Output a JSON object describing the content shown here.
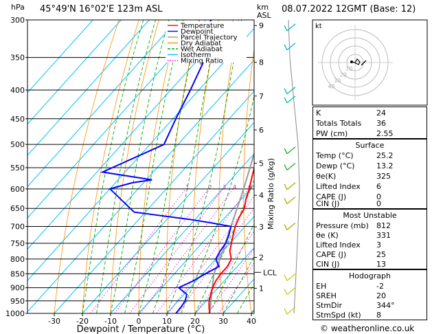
{
  "header": {
    "hpa_label": "hPa",
    "location": "45°49'N  16°02'E  123m  ASL",
    "km_label": "km",
    "asl_label": "ASL",
    "datetime": "08.07.2022  12GMT  (Base: 12)"
  },
  "legend": [
    {
      "label": "Temperature",
      "color": "#ff0000"
    },
    {
      "label": "Dewpoint",
      "color": "#0000ff"
    },
    {
      "label": "Parcel Trajectory",
      "color": "#999999"
    },
    {
      "label": "Dry Adiabat",
      "color": "#ff8c00"
    },
    {
      "label": "Wet Adiabat",
      "color": "#00aa00"
    },
    {
      "label": "Isotherm",
      "color": "#00bfff"
    },
    {
      "label": "Mixing Ratio",
      "color": "#ff00ff"
    }
  ],
  "chart_data": {
    "type": "skew-t",
    "xlabel": "Dewpoint / Temperature (°C)",
    "x_ticks": [
      -30,
      -20,
      -10,
      0,
      10,
      20,
      30,
      40
    ],
    "pressure_levels": [
      300,
      350,
      400,
      450,
      500,
      550,
      600,
      650,
      700,
      750,
      800,
      850,
      900,
      950,
      1000
    ],
    "altitude_km_ticks": [
      "1",
      "2",
      "3",
      "4",
      "5",
      "6",
      "7",
      "8",
      "9"
    ],
    "altitude_km_pressures": [
      902,
      795,
      701,
      616,
      540,
      471,
      410,
      357,
      307
    ],
    "lcl_label": "LCL",
    "lcl_pressure": 845,
    "mixing_ratio_axis_label": "Mixing Ratio (g/kg)",
    "mixing_ratio_labels": [
      "1",
      "2",
      "3",
      "4",
      "6",
      "8",
      "10",
      "15",
      "20",
      "25"
    ],
    "mixing_ratio_values": [
      1,
      2,
      3,
      4,
      6,
      8,
      10,
      15,
      20,
      25
    ],
    "temperature": [
      [
        1000,
        25.2
      ],
      [
        975,
        23
      ],
      [
        950,
        21
      ],
      [
        925,
        19.5
      ],
      [
        900,
        18
      ],
      [
        875,
        17
      ],
      [
        850,
        16.5
      ],
      [
        825,
        16.5
      ],
      [
        800,
        15.5
      ],
      [
        775,
        12.5
      ],
      [
        750,
        10.5
      ],
      [
        725,
        8.5
      ],
      [
        700,
        6.5
      ],
      [
        675,
        5
      ],
      [
        650,
        4
      ],
      [
        625,
        1.5
      ],
      [
        600,
        -0.5
      ],
      [
        575,
        -3
      ],
      [
        550,
        -5.5
      ],
      [
        500,
        -10.5
      ],
      [
        450,
        -16.5
      ],
      [
        400,
        -24
      ],
      [
        350,
        -32
      ],
      [
        300,
        -40.5
      ]
    ],
    "dewpoint": [
      [
        1000,
        13.2
      ],
      [
        975,
        13
      ],
      [
        950,
        12.5
      ],
      [
        925,
        11
      ],
      [
        900,
        6
      ],
      [
        875,
        9
      ],
      [
        850,
        11
      ],
      [
        825,
        13.5
      ],
      [
        800,
        10
      ],
      [
        775,
        9
      ],
      [
        750,
        8.5
      ],
      [
        725,
        7
      ],
      [
        700,
        5
      ],
      [
        690,
        -3
      ],
      [
        680,
        -12
      ],
      [
        660,
        -34
      ],
      [
        600,
        -50
      ],
      [
        585,
        -44
      ],
      [
        578,
        -38
      ],
      [
        560,
        -58
      ],
      [
        500,
        -45
      ],
      [
        450,
        -49
      ],
      [
        400,
        -53
      ],
      [
        350,
        -58
      ],
      [
        320,
        -67
      ],
      [
        300,
        -68
      ]
    ],
    "parcel": [
      [
        1000,
        25.2
      ],
      [
        850,
        14
      ],
      [
        800,
        11.5
      ],
      [
        700,
        5
      ],
      [
        600,
        -2.5
      ],
      [
        500,
        -12
      ],
      [
        400,
        -24.5
      ],
      [
        300,
        -41
      ]
    ]
  },
  "hodograph": {
    "kt_label": "kt",
    "ring_labels": [
      "10",
      "20",
      "30",
      "40"
    ]
  },
  "indices": {
    "rows": [
      {
        "label": "K",
        "value": "24"
      },
      {
        "label": "Totals Totals",
        "value": "36"
      },
      {
        "label": "PW (cm)",
        "value": "2.55"
      }
    ],
    "surface": {
      "title": "Surface",
      "rows": [
        {
          "label": "Temp (°C)",
          "value": "25.2"
        },
        {
          "label": "Dewp (°C)",
          "value": "13.2"
        },
        {
          "label": "θe(K)",
          "value": "325"
        },
        {
          "label": "Lifted Index",
          "value": "6"
        },
        {
          "label": "CAPE (J)",
          "value": "0"
        },
        {
          "label": "CIN (J)",
          "value": "0"
        }
      ]
    },
    "most_unstable": {
      "title": "Most Unstable",
      "rows": [
        {
          "label": "Pressure (mb)",
          "value": "812"
        },
        {
          "label": "θe (K)",
          "value": "331"
        },
        {
          "label": "Lifted Index",
          "value": "3"
        },
        {
          "label": "CAPE (J)",
          "value": "25"
        },
        {
          "label": "CIN (J)",
          "value": "13"
        }
      ]
    },
    "hodograph_stats": {
      "title": "Hodograph",
      "rows": [
        {
          "label": "EH",
          "value": "-2"
        },
        {
          "label": "SREH",
          "value": "20"
        },
        {
          "label": "StmDir",
          "value": "344°"
        },
        {
          "label": "StmSpd (kt)",
          "value": "8"
        }
      ]
    }
  },
  "footer": {
    "copyright": "© weatheronline.co.uk"
  }
}
